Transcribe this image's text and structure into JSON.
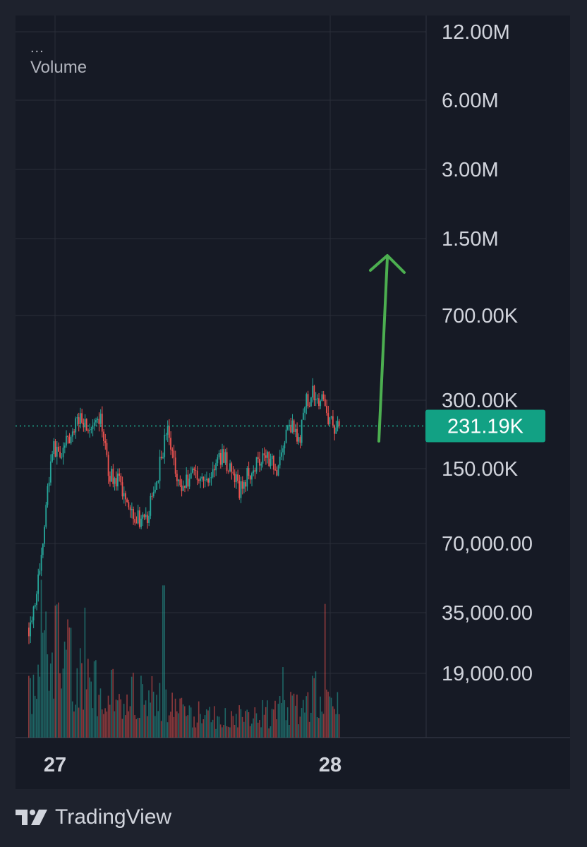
{
  "legend": {
    "menu_dots": "...",
    "indicator_label": "Volume"
  },
  "footer": {
    "brand": "TradingView"
  },
  "colors": {
    "background": "#1e222d",
    "panel": "#161a25",
    "grid": "#2a2e39",
    "up": "#26a69a",
    "down": "#ef5350",
    "price_line": "#1fae92",
    "badge": "#12a184",
    "arrow": "#4caf50",
    "text": "#d1d4dc"
  },
  "chart_data": {
    "type": "candlestick",
    "y_scale": "log",
    "y_ticks": [
      "12.00M",
      "6.00M",
      "3.00M",
      "1.50M",
      "700.00K",
      "300.00K",
      "150.00K",
      "70,000.00",
      "35,000.00",
      "19,000.00"
    ],
    "y_tick_values": [
      12000000,
      6000000,
      3000000,
      1500000,
      700000,
      300000,
      150000,
      70000,
      35000,
      19000
    ],
    "x_ticks": [
      "27",
      "28"
    ],
    "last_price": 231190,
    "last_price_label": "231.19K",
    "price_path": [
      {
        "t": 0.0,
        "v": 30000
      },
      {
        "t": 0.02,
        "v": 40000
      },
      {
        "t": 0.04,
        "v": 60000
      },
      {
        "t": 0.06,
        "v": 120000
      },
      {
        "t": 0.075,
        "v": 185000
      },
      {
        "t": 0.1,
        "v": 175000
      },
      {
        "t": 0.13,
        "v": 200000
      },
      {
        "t": 0.165,
        "v": 260000
      },
      {
        "t": 0.2,
        "v": 215000
      },
      {
        "t": 0.235,
        "v": 245000
      },
      {
        "t": 0.255,
        "v": 145000
      },
      {
        "t": 0.29,
        "v": 130000
      },
      {
        "t": 0.34,
        "v": 95000
      },
      {
        "t": 0.375,
        "v": 85000
      },
      {
        "t": 0.41,
        "v": 130000
      },
      {
        "t": 0.445,
        "v": 225000
      },
      {
        "t": 0.49,
        "v": 120000
      },
      {
        "t": 0.53,
        "v": 150000
      },
      {
        "t": 0.57,
        "v": 130000
      },
      {
        "t": 0.625,
        "v": 175000
      },
      {
        "t": 0.68,
        "v": 120000
      },
      {
        "t": 0.71,
        "v": 145000
      },
      {
        "t": 0.76,
        "v": 180000
      },
      {
        "t": 0.8,
        "v": 150000
      },
      {
        "t": 0.84,
        "v": 240000
      },
      {
        "t": 0.87,
        "v": 195000
      },
      {
        "t": 0.895,
        "v": 300000
      },
      {
        "t": 0.92,
        "v": 325000
      },
      {
        "t": 0.95,
        "v": 290000
      },
      {
        "t": 0.975,
        "v": 235000
      },
      {
        "t": 1.0,
        "v": 231190
      }
    ],
    "volume_profile": [
      {
        "t": 0.0,
        "v": 0.35
      },
      {
        "t": 0.05,
        "v": 0.8
      },
      {
        "t": 0.1,
        "v": 0.65
      },
      {
        "t": 0.2,
        "v": 0.4
      },
      {
        "t": 0.3,
        "v": 0.35
      },
      {
        "t": 0.4,
        "v": 0.3
      },
      {
        "t": 0.5,
        "v": 0.2
      },
      {
        "t": 0.65,
        "v": 0.15
      },
      {
        "t": 0.8,
        "v": 0.2
      },
      {
        "t": 0.9,
        "v": 0.3
      },
      {
        "t": 0.95,
        "v": 0.35
      },
      {
        "t": 1.0,
        "v": 0.25
      }
    ],
    "volume_spikes": [
      {
        "t": 0.04,
        "v": 0.85
      },
      {
        "t": 0.18,
        "v": 0.7
      },
      {
        "t": 0.435,
        "v": 0.82
      },
      {
        "t": 0.82,
        "v": 0.38
      },
      {
        "t": 0.955,
        "v": 0.72
      }
    ],
    "annotation": "upward green arrow"
  }
}
